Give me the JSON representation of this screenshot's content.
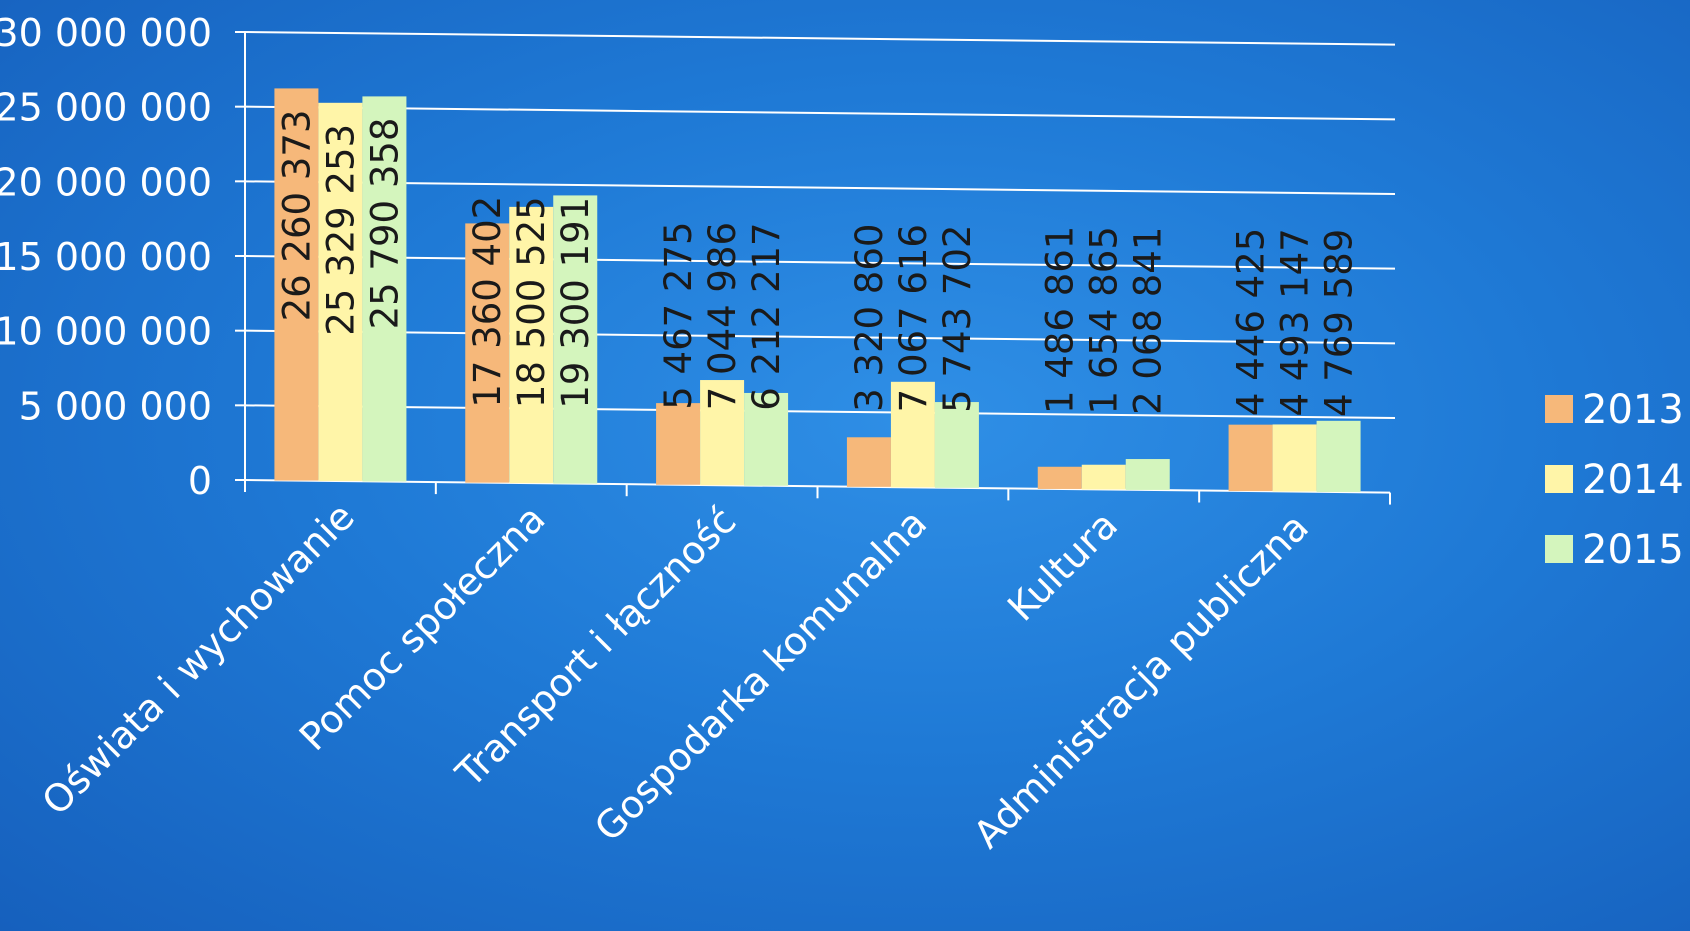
{
  "chart_data": {
    "type": "bar",
    "title": "",
    "xlabel": "",
    "ylabel": "",
    "ylim": [
      0,
      30000000
    ],
    "y_ticks": [
      0,
      5000000,
      10000000,
      15000000,
      20000000,
      25000000,
      30000000
    ],
    "y_tick_labels": [
      "0",
      "5 000 000",
      "10 000 000",
      "15 000 000",
      "20 000 000",
      "25 000 000",
      "30 000 000"
    ],
    "grid": true,
    "legend_position": "right",
    "categories": [
      "Oświata i  wychowanie",
      "Pomoc społeczna",
      "Transport i łączność",
      "Gospodarka komunalna",
      "Kultura",
      "Administracja publiczna"
    ],
    "series": [
      {
        "name": "2013",
        "color": "#f6b87a",
        "values": [
          26260373,
          17360402,
          5467275,
          3320860,
          1486861,
          4446425
        ],
        "labels": [
          "26 260 373",
          "17 360 402",
          "5 467 275",
          "3 320 860",
          "1 486 861",
          "4 446 425"
        ]
      },
      {
        "name": "2014",
        "color": "#fff5a8",
        "values": [
          25329253,
          18500525,
          7044986,
          7067616,
          1654865,
          4493147
        ],
        "labels": [
          "25 329 253",
          "18 500 525",
          "7 044 986",
          "7 067 616",
          "1 654 865",
          "4 493 147"
        ]
      },
      {
        "name": "2015",
        "color": "#d4f5bd",
        "values": [
          25790358,
          19300191,
          6212217,
          5743702,
          2068841,
          4769589
        ],
        "labels": [
          "25 790 358",
          "19 300 191",
          "6 212 217",
          "5 743 702",
          "2 068 841",
          "4 769 589"
        ]
      }
    ]
  }
}
